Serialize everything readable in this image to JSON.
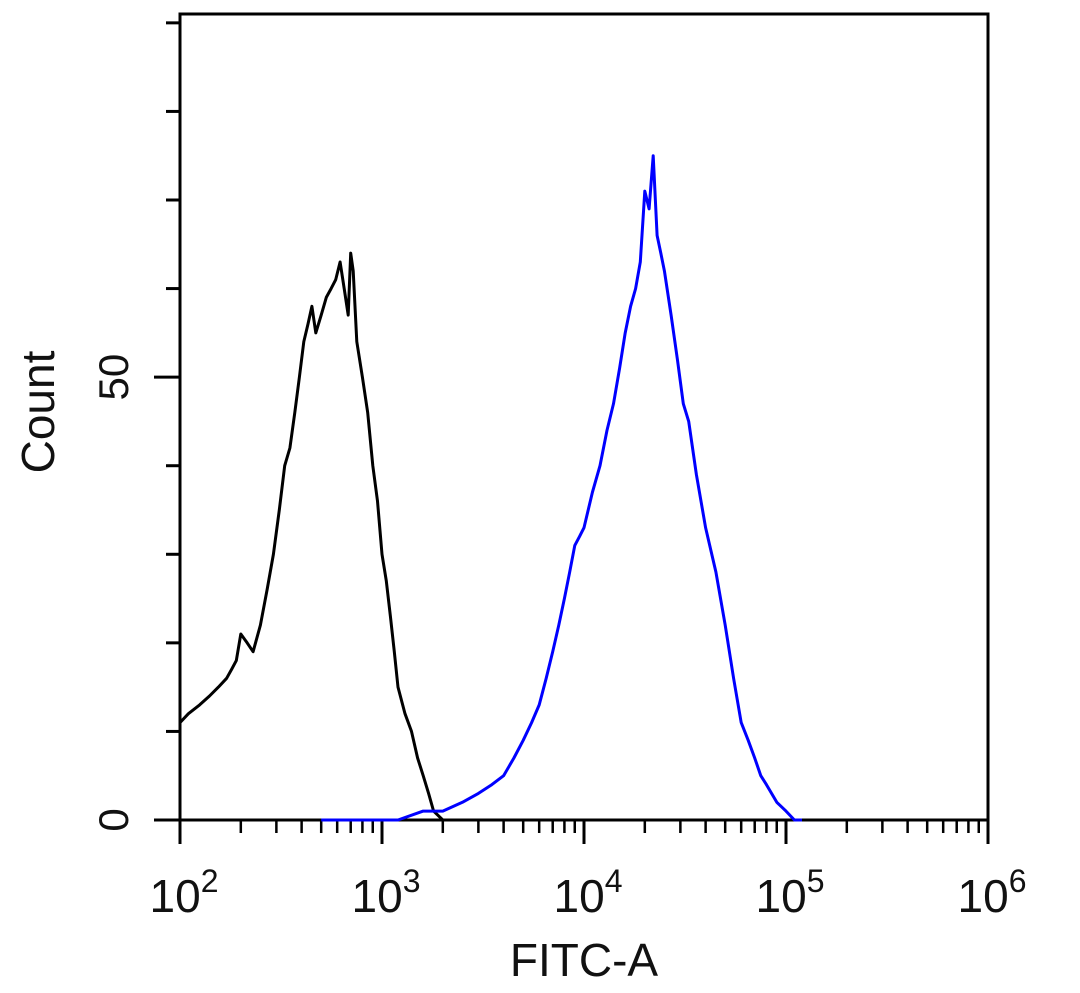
{
  "chart_data": {
    "type": "line",
    "xlabel": "FITC-A",
    "ylabel": "Count",
    "xscale": "log",
    "xlim": [
      100,
      1000000
    ],
    "ylim": [
      0,
      91
    ],
    "grid": false,
    "x_ticks": [
      {
        "value": 100,
        "base": "10",
        "exp": "2"
      },
      {
        "value": 1000,
        "base": "10",
        "exp": "3"
      },
      {
        "value": 10000,
        "base": "10",
        "exp": "4"
      },
      {
        "value": 100000,
        "base": "10",
        "exp": "5"
      },
      {
        "value": 1000000,
        "base": "10",
        "exp": "6"
      }
    ],
    "y_tick_labels": [
      {
        "value": 0,
        "label": "0"
      },
      {
        "value": 50,
        "label": "50"
      }
    ],
    "y_minor_ticks": [
      10,
      20,
      30,
      40,
      60,
      70,
      80,
      90
    ],
    "series": [
      {
        "color": "#000000",
        "x": [
          100,
          110,
          125,
          140,
          155,
          170,
          180,
          190,
          200,
          215,
          230,
          250,
          270,
          290,
          310,
          330,
          350,
          370,
          390,
          410,
          430,
          450,
          470,
          500,
          530,
          560,
          590,
          620,
          650,
          680,
          700,
          720,
          750,
          800,
          850,
          900,
          950,
          1000,
          1050,
          1100,
          1150,
          1200,
          1300,
          1400,
          1500,
          1600,
          1700,
          1800,
          2000
        ],
        "y": [
          11,
          12,
          13,
          14,
          15,
          16,
          17,
          18,
          21,
          20,
          19,
          22,
          26,
          30,
          35,
          40,
          42,
          46,
          50,
          54,
          56,
          58,
          55,
          57,
          59,
          60,
          61,
          63,
          60,
          57,
          64,
          62,
          54,
          50,
          46,
          40,
          36,
          30,
          27,
          23,
          19,
          15,
          12,
          10,
          7,
          5,
          3,
          1,
          0
        ]
      },
      {
        "color": "#0000ff",
        "x": [
          500,
          800,
          1200,
          1600,
          2000,
          2500,
          3000,
          3500,
          4000,
          4500,
          5000,
          5500,
          6000,
          6500,
          7000,
          7500,
          8000,
          8500,
          9000,
          9500,
          10000,
          11000,
          12000,
          13000,
          14000,
          15000,
          16000,
          17000,
          18000,
          19000,
          20000,
          21000,
          22000,
          23000,
          24000,
          25000,
          27000,
          29000,
          31000,
          33000,
          36000,
          40000,
          45000,
          50000,
          55000,
          60000,
          65000,
          70000,
          75000,
          80000,
          90000,
          100000,
          110000,
          120000
        ],
        "y": [
          0,
          0,
          0,
          1,
          1,
          2,
          3,
          4,
          5,
          7,
          9,
          11,
          13,
          16,
          19,
          22,
          25,
          28,
          31,
          32,
          33,
          37,
          40,
          44,
          47,
          51,
          55,
          58,
          60,
          63,
          71,
          69,
          75,
          66,
          64,
          62,
          57,
          52,
          47,
          45,
          39,
          33,
          28,
          22,
          16,
          11,
          9,
          7,
          5,
          4,
          2,
          1,
          0,
          0
        ]
      }
    ]
  }
}
